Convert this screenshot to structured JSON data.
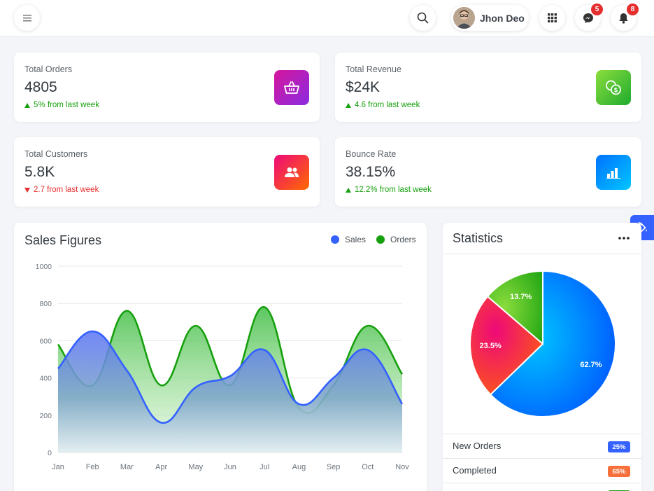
{
  "header": {
    "user_name": "Jhon Deo",
    "messages_count": "5",
    "notifications_count": "8"
  },
  "stats": [
    {
      "label": "Total Orders",
      "value": "4805",
      "change": "5% from last week",
      "trend": "up",
      "icon": "basket-icon",
      "gradient": [
        "#d6169b",
        "#8a2be2"
      ]
    },
    {
      "label": "Total Revenue",
      "value": "$24K",
      "change": "4.6 from last week",
      "trend": "up",
      "icon": "money-icon",
      "gradient": [
        "#8bdd3d",
        "#1eab2e"
      ]
    },
    {
      "label": "Total Customers",
      "value": "5.8K",
      "change": "2.7 from last week",
      "trend": "down",
      "icon": "users-icon",
      "gradient": [
        "#ee0979",
        "#ff6a00"
      ]
    },
    {
      "label": "Bounce Rate",
      "value": "38.15%",
      "change": "12.2% from last week",
      "trend": "up",
      "icon": "bar-chart-icon",
      "gradient": [
        "#0072ff",
        "#00c6ff"
      ]
    }
  ],
  "sales_figures": {
    "title": "Sales Figures",
    "legend": [
      {
        "name": "Sales",
        "color": "#3461ff"
      },
      {
        "name": "Orders",
        "color": "#17a00e"
      }
    ]
  },
  "statistics": {
    "title": "Statistics",
    "rows": [
      {
        "label": "New Orders",
        "pill": "25%",
        "color": "#3461ff"
      },
      {
        "label": "Completed",
        "pill": "65%",
        "color": "#f7703b"
      },
      {
        "label": "",
        "pill": "",
        "color": "#17a00e"
      }
    ]
  },
  "chart_data": [
    {
      "type": "area",
      "categories": [
        "Jan",
        "Feb",
        "Mar",
        "Apr",
        "May",
        "Jun",
        "Jul",
        "Aug",
        "Sep",
        "Oct",
        "Nov"
      ],
      "ylim": [
        0,
        1000
      ],
      "yticks": [
        0,
        200,
        400,
        600,
        800,
        1000
      ],
      "grid": true,
      "legend_position": "top-right",
      "series": [
        {
          "name": "Sales",
          "values": [
            450,
            650,
            440,
            160,
            350,
            410,
            550,
            260,
            400,
            550,
            260
          ],
          "color": "#3461ff"
        },
        {
          "name": "Orders",
          "values": [
            580,
            360,
            760,
            360,
            680,
            360,
            780,
            240,
            360,
            680,
            420
          ],
          "color": "#17a00e"
        }
      ]
    },
    {
      "type": "pie",
      "slices": [
        {
          "label": "62.7%",
          "value": 62.7,
          "colors": [
            "#00c6ff",
            "#0052ff"
          ]
        },
        {
          "label": "23.5%",
          "value": 23.5,
          "colors": [
            "#ee0979",
            "#ff6a00"
          ]
        },
        {
          "label": "13.7%",
          "value": 13.7,
          "colors": [
            "#8bdd3d",
            "#17a00e"
          ]
        }
      ]
    }
  ]
}
